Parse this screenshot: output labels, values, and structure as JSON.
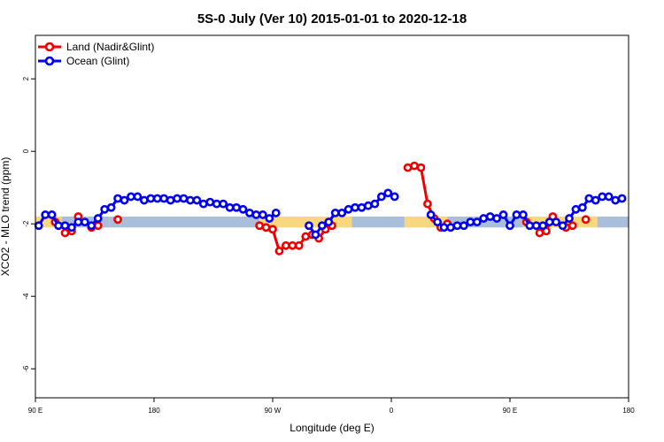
{
  "chart_data": {
    "type": "line",
    "title": "5S-0 July (Ver 10)   2015-01-01 to 2020-12-18",
    "xlabel": "Longitude (deg E)",
    "ylabel": "XCO2 - MLO trend (ppm)",
    "xlim": [
      90,
      450
    ],
    "ylim": [
      -6.8,
      3.2
    ],
    "x_ticks": [
      {
        "value": 90,
        "label": "90 E"
      },
      {
        "value": 162,
        "label": "180"
      },
      {
        "value": 234,
        "label": "90 W"
      },
      {
        "value": 306,
        "label": "0"
      },
      {
        "value": 378,
        "label": "90 E"
      },
      {
        "value": 450,
        "label": "180"
      }
    ],
    "y_ticks": [
      {
        "value": 2,
        "label": "2"
      },
      {
        "value": 0,
        "label": "0"
      },
      {
        "value": -2,
        "label": "-2"
      },
      {
        "value": -4,
        "label": "-4"
      },
      {
        "value": -6,
        "label": "-6"
      }
    ],
    "grid": false,
    "legend_position": "top-left",
    "band": {
      "ymin": -2.1,
      "ymax": -1.8,
      "segments": [
        {
          "x0": 90,
          "x1": 106,
          "color": "#f9d77e"
        },
        {
          "x0": 106,
          "x1": 135,
          "color": "#a8bedb"
        },
        {
          "x0": 135,
          "x1": 226,
          "color": "#a8bedb"
        },
        {
          "x0": 226,
          "x1": 282,
          "color": "#f9d77e"
        },
        {
          "x0": 282,
          "x1": 314,
          "color": "#a8bedb"
        },
        {
          "x0": 314,
          "x1": 340,
          "color": "#f9d77e"
        },
        {
          "x0": 340,
          "x1": 386,
          "color": "#a8bedb"
        },
        {
          "x0": 386,
          "x1": 398,
          "color": "#f9d77e"
        },
        {
          "x0": 398,
          "x1": 431,
          "color": "#f9d77e"
        },
        {
          "x0": 431,
          "x1": 450,
          "color": "#a8bedb"
        }
      ]
    },
    "series": [
      {
        "name": "Land (Nadir&Glint)",
        "color": "#ee0000",
        "segments": [
          [
            [
              102,
              -1.95
            ]
          ],
          [
            [
              108,
              -2.25
            ],
            [
              112,
              -2.2
            ],
            [
              116,
              -1.8
            ]
          ],
          [
            [
              124,
              -2.1
            ],
            [
              128,
              -2.05
            ]
          ],
          [
            [
              140,
              -1.88
            ]
          ],
          [
            [
              226,
              -2.05
            ],
            [
              230,
              -2.1
            ],
            [
              234,
              -2.15
            ],
            [
              238,
              -2.75
            ],
            [
              242,
              -2.6
            ],
            [
              246,
              -2.6
            ],
            [
              250,
              -2.6
            ],
            [
              254,
              -2.35
            ],
            [
              258,
              -2.3
            ],
            [
              262,
              -2.4
            ],
            [
              266,
              -2.15
            ],
            [
              270,
              -2.05
            ]
          ],
          [
            [
              316,
              -0.45
            ],
            [
              320,
              -0.4
            ],
            [
              324,
              -0.45
            ],
            [
              328,
              -1.45
            ],
            [
              332,
              -1.85
            ],
            [
              336,
              -2.1
            ],
            [
              340,
              -2.0
            ]
          ],
          [
            [
              388,
              -1.95
            ]
          ],
          [
            [
              396,
              -2.25
            ],
            [
              400,
              -2.2
            ],
            [
              404,
              -1.8
            ]
          ],
          [
            [
              412,
              -2.1
            ],
            [
              416,
              -2.05
            ]
          ],
          [
            [
              424,
              -1.88
            ]
          ]
        ]
      },
      {
        "name": "Ocean (Glint)",
        "color": "#0000ee",
        "segments": [
          [
            [
              92,
              -2.05
            ],
            [
              96,
              -1.75
            ],
            [
              100,
              -1.75
            ],
            [
              104,
              -2.05
            ],
            [
              108,
              -2.05
            ],
            [
              112,
              -2.1
            ],
            [
              116,
              -1.95
            ],
            [
              120,
              -1.95
            ],
            [
              124,
              -2.05
            ],
            [
              128,
              -1.85
            ],
            [
              132,
              -1.6
            ],
            [
              136,
              -1.55
            ],
            [
              140,
              -1.3
            ],
            [
              144,
              -1.35
            ],
            [
              148,
              -1.25
            ],
            [
              152,
              -1.25
            ],
            [
              156,
              -1.35
            ],
            [
              160,
              -1.3
            ],
            [
              164,
              -1.3
            ],
            [
              168,
              -1.3
            ],
            [
              172,
              -1.35
            ],
            [
              176,
              -1.3
            ],
            [
              180,
              -1.3
            ],
            [
              184,
              -1.35
            ],
            [
              188,
              -1.35
            ],
            [
              192,
              -1.45
            ],
            [
              196,
              -1.4
            ],
            [
              200,
              -1.45
            ],
            [
              204,
              -1.45
            ],
            [
              208,
              -1.55
            ],
            [
              212,
              -1.55
            ],
            [
              216,
              -1.6
            ],
            [
              220,
              -1.7
            ],
            [
              224,
              -1.75
            ],
            [
              228,
              -1.75
            ],
            [
              232,
              -1.85
            ],
            [
              236,
              -1.7
            ]
          ],
          [
            [
              256,
              -2.05
            ],
            [
              260,
              -2.3
            ],
            [
              264,
              -2.05
            ],
            [
              268,
              -1.95
            ],
            [
              272,
              -1.7
            ],
            [
              276,
              -1.7
            ],
            [
              280,
              -1.6
            ],
            [
              284,
              -1.55
            ],
            [
              288,
              -1.55
            ],
            [
              292,
              -1.5
            ],
            [
              296,
              -1.45
            ],
            [
              300,
              -1.25
            ],
            [
              304,
              -1.15
            ],
            [
              308,
              -1.25
            ]
          ],
          [
            [
              330,
              -1.75
            ],
            [
              334,
              -1.95
            ],
            [
              338,
              -2.1
            ],
            [
              342,
              -2.1
            ],
            [
              346,
              -2.05
            ],
            [
              350,
              -2.05
            ],
            [
              354,
              -1.95
            ],
            [
              358,
              -1.95
            ],
            [
              362,
              -1.85
            ],
            [
              366,
              -1.8
            ],
            [
              370,
              -1.85
            ],
            [
              374,
              -1.75
            ],
            [
              378,
              -2.05
            ],
            [
              382,
              -1.75
            ],
            [
              386,
              -1.75
            ],
            [
              390,
              -2.05
            ],
            [
              394,
              -2.05
            ],
            [
              398,
              -2.05
            ],
            [
              402,
              -1.95
            ],
            [
              406,
              -1.95
            ],
            [
              410,
              -2.05
            ],
            [
              414,
              -1.85
            ],
            [
              418,
              -1.6
            ],
            [
              422,
              -1.55
            ],
            [
              426,
              -1.3
            ],
            [
              430,
              -1.35
            ],
            [
              434,
              -1.25
            ],
            [
              438,
              -1.25
            ],
            [
              442,
              -1.35
            ],
            [
              446,
              -1.3
            ]
          ]
        ]
      }
    ]
  }
}
